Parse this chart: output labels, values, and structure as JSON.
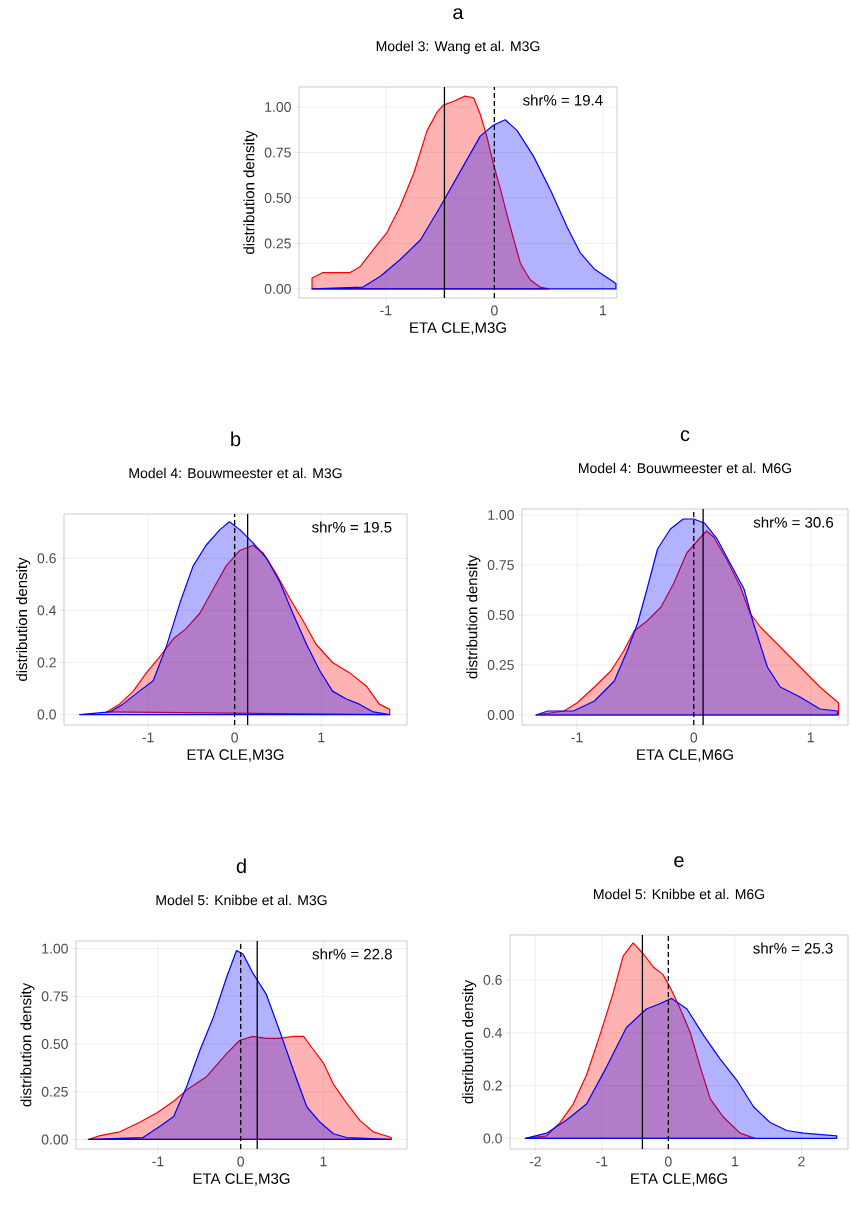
{
  "chart_data": [
    {
      "type": "area",
      "title": "a",
      "subtitle": "Model 3: Wang et al. M3G",
      "xlabel": "ETA CLE,M3G",
      "ylabel": "distribution density",
      "annotations": [
        "shr% = 19.4"
      ],
      "grid": true,
      "xlim": [
        -1.8,
        1.13
      ],
      "ylim": [
        -0.05,
        1.11
      ],
      "xticks": [
        -1,
        0,
        1
      ],
      "yticks": [
        {
          "value": 0,
          "label": "0.00"
        },
        {
          "value": 0.25,
          "label": "0.25"
        },
        {
          "value": 0.5,
          "label": "0.50"
        },
        {
          "value": 0.75,
          "label": "0.75"
        },
        {
          "value": 1,
          "label": "1.00"
        }
      ],
      "ref_lines": [
        {
          "axis": "x",
          "value": -0.46,
          "color": "#000000",
          "line_style": "solid"
        },
        {
          "axis": "x",
          "value": 0,
          "color": "#000000",
          "line_style": "dashed"
        }
      ],
      "series": [
        {
          "color": "#ff0000",
          "x": [
            -1.68,
            -1.68,
            -1.58,
            -1.45,
            -1.33,
            -1.24,
            -1.11,
            -0.99,
            -0.87,
            -0.74,
            -0.62,
            -0.53,
            -0.47,
            -0.38,
            -0.27,
            -0.19,
            -0.13,
            -0.07,
            -0.01,
            0.06,
            0.12,
            0.18,
            0.24,
            0.33,
            0.42,
            0.5
          ],
          "values": [
            0,
            0.06,
            0.09,
            0.09,
            0.09,
            0.12,
            0.22,
            0.31,
            0.45,
            0.64,
            0.87,
            0.97,
            1.01,
            1.03,
            1.06,
            1.05,
            0.96,
            0.84,
            0.69,
            0.54,
            0.4,
            0.27,
            0.14,
            0.05,
            0.01,
            0
          ]
        },
        {
          "color": "#0000ff",
          "x": [
            -1.68,
            -1.21,
            -1.05,
            -0.87,
            -0.68,
            -0.5,
            -0.31,
            -0.13,
            -0.01,
            0.1,
            0.21,
            0.36,
            0.52,
            0.67,
            0.79,
            0.92,
            1.07,
            1.12,
            1.12
          ],
          "values": [
            0,
            0.01,
            0.07,
            0.16,
            0.27,
            0.45,
            0.65,
            0.84,
            0.9,
            0.93,
            0.87,
            0.73,
            0.54,
            0.34,
            0.2,
            0.11,
            0.05,
            0.03,
            0
          ]
        }
      ]
    },
    {
      "type": "area",
      "title": "b",
      "subtitle": "Model 4: Bouwmeester et al. M3G",
      "xlabel": "ETA CLE,M3G",
      "ylabel": "distribution density",
      "annotations": [
        "shr% = 19.5"
      ],
      "grid": true,
      "xlim": [
        -1.97,
        1.99
      ],
      "ylim": [
        -0.04,
        0.77
      ],
      "xticks": [
        -1,
        0,
        1
      ],
      "yticks": [
        {
          "value": 0,
          "label": "0.0"
        },
        {
          "value": 0.2,
          "label": "0.2"
        },
        {
          "value": 0.4,
          "label": "0.4"
        },
        {
          "value": 0.6,
          "label": "0.6"
        }
      ],
      "ref_lines": [
        {
          "axis": "x",
          "value": 0,
          "color": "#000000",
          "line_style": "dashed"
        },
        {
          "axis": "x",
          "value": 0.15,
          "color": "#000000",
          "line_style": "solid"
        }
      ],
      "series": [
        {
          "color": "#ff0000",
          "x": [
            -1.48,
            -1.33,
            -1.17,
            -1.02,
            -0.87,
            -0.71,
            -0.56,
            -0.4,
            -0.25,
            -0.1,
            0.06,
            0.21,
            0.33,
            0.48,
            0.63,
            0.79,
            0.94,
            1.13,
            1.33,
            1.52,
            1.67,
            1.79,
            1.79
          ],
          "values": [
            0.01,
            0.04,
            0.09,
            0.16,
            0.22,
            0.29,
            0.33,
            0.39,
            0.48,
            0.57,
            0.63,
            0.65,
            0.62,
            0.54,
            0.45,
            0.36,
            0.27,
            0.2,
            0.16,
            0.11,
            0.04,
            0.02,
            0
          ]
        },
        {
          "color": "#0000ff",
          "x": [
            -1.79,
            -1.44,
            -1.29,
            -1.1,
            -0.94,
            -0.79,
            -0.63,
            -0.48,
            -0.33,
            -0.17,
            -0.06,
            0.06,
            0.21,
            0.37,
            0.52,
            0.67,
            0.83,
            0.98,
            1.13,
            1.29,
            1.44,
            1.6,
            1.79
          ],
          "values": [
            0,
            0.01,
            0.04,
            0.09,
            0.13,
            0.26,
            0.43,
            0.57,
            0.65,
            0.71,
            0.74,
            0.71,
            0.66,
            0.6,
            0.51,
            0.39,
            0.27,
            0.17,
            0.09,
            0.06,
            0.04,
            0.01,
            0
          ]
        }
      ]
    },
    {
      "type": "area",
      "title": "c",
      "subtitle": "Model 4: Bouwmeester et al. M6G",
      "xlabel": "ETA CLE,M6G",
      "ylabel": "distribution density",
      "annotations": [
        "shr% = 30.6"
      ],
      "grid": true,
      "xlim": [
        -1.47,
        1.32
      ],
      "ylim": [
        -0.05,
        1.03
      ],
      "xticks": [
        -1,
        0,
        1
      ],
      "yticks": [
        {
          "value": 0,
          "label": "0.00"
        },
        {
          "value": 0.25,
          "label": "0.25"
        },
        {
          "value": 0.5,
          "label": "0.50"
        },
        {
          "value": 0.75,
          "label": "0.75"
        },
        {
          "value": 1,
          "label": "1.00"
        }
      ],
      "ref_lines": [
        {
          "axis": "x",
          "value": 0,
          "color": "#000000",
          "line_style": "dashed"
        },
        {
          "axis": "x",
          "value": 0.08,
          "color": "#000000",
          "line_style": "solid"
        }
      ],
      "series": [
        {
          "color": "#ff0000",
          "x": [
            -1.35,
            -1.11,
            -1.0,
            -0.85,
            -0.71,
            -0.6,
            -0.51,
            -0.4,
            -0.28,
            -0.17,
            -0.06,
            0.06,
            0.11,
            0.17,
            0.28,
            0.4,
            0.48,
            0.57,
            0.74,
            0.91,
            1.08,
            1.24,
            1.24
          ],
          "values": [
            0,
            0.02,
            0.06,
            0.14,
            0.22,
            0.32,
            0.42,
            0.47,
            0.54,
            0.66,
            0.81,
            0.89,
            0.92,
            0.89,
            0.78,
            0.64,
            0.51,
            0.44,
            0.34,
            0.24,
            0.14,
            0.06,
            0
          ]
        },
        {
          "color": "#0000ff",
          "x": [
            -1.35,
            -1.25,
            -1.03,
            -0.85,
            -0.68,
            -0.57,
            -0.48,
            -0.4,
            -0.31,
            -0.2,
            -0.09,
            0,
            0.09,
            0.2,
            0.31,
            0.43,
            0.51,
            0.63,
            0.74,
            0.91,
            1.08,
            1.23,
            1.23
          ],
          "values": [
            0,
            0.02,
            0.02,
            0.07,
            0.17,
            0.32,
            0.46,
            0.63,
            0.83,
            0.93,
            0.98,
            0.98,
            0.96,
            0.88,
            0.76,
            0.63,
            0.46,
            0.24,
            0.14,
            0.09,
            0.03,
            0.02,
            0
          ]
        }
      ]
    },
    {
      "type": "area",
      "title": "d",
      "subtitle": "Model 5: Knibbe et al. M3G",
      "xlabel": "ETA CLE,M3G",
      "ylabel": "distribution density",
      "annotations": [
        "shr% = 22.8"
      ],
      "grid": true,
      "xlim": [
        -1.99,
        2.01
      ],
      "ylim": [
        -0.05,
        1.04
      ],
      "xticks": [
        -1,
        0,
        1
      ],
      "yticks": [
        {
          "value": 0,
          "label": "0.00"
        },
        {
          "value": 0.25,
          "label": "0.25"
        },
        {
          "value": 0.5,
          "label": "0.50"
        },
        {
          "value": 0.75,
          "label": "0.75"
        },
        {
          "value": 1,
          "label": "1.00"
        }
      ],
      "ref_lines": [
        {
          "axis": "x",
          "value": 0,
          "color": "#000000",
          "line_style": "dashed"
        },
        {
          "axis": "x",
          "value": 0.2,
          "color": "#000000",
          "line_style": "solid"
        }
      ],
      "series": [
        {
          "color": "#ff0000",
          "x": [
            -1.84,
            -1.7,
            -1.46,
            -1.22,
            -1.01,
            -0.81,
            -0.65,
            -0.41,
            -0.17,
            -0.01,
            0.15,
            0.31,
            0.47,
            0.64,
            0.76,
            0.88,
            1.0,
            1.12,
            1.28,
            1.44,
            1.6,
            1.82,
            1.82
          ],
          "values": [
            0,
            0.02,
            0.04,
            0.09,
            0.14,
            0.2,
            0.26,
            0.33,
            0.45,
            0.52,
            0.54,
            0.53,
            0.53,
            0.54,
            0.54,
            0.47,
            0.4,
            0.29,
            0.19,
            0.1,
            0.04,
            0.01,
            0
          ]
        },
        {
          "color": "#0000ff",
          "x": [
            -1.84,
            -1.18,
            -0.97,
            -0.81,
            -0.65,
            -0.49,
            -0.33,
            -0.17,
            -0.05,
            0.03,
            0.15,
            0.31,
            0.47,
            0.64,
            0.8,
            0.96,
            1.12,
            1.28,
            1.82
          ],
          "values": [
            0,
            0.01,
            0.07,
            0.12,
            0.28,
            0.47,
            0.64,
            0.85,
            0.99,
            0.97,
            0.87,
            0.76,
            0.57,
            0.36,
            0.17,
            0.09,
            0.03,
            0.01,
            0
          ]
        }
      ]
    },
    {
      "type": "area",
      "title": "e",
      "subtitle": "Model 5: Knibbe et al. M6G",
      "xlabel": "ETA CLE,M6G",
      "ylabel": "distribution density",
      "annotations": [
        "shr% = 25.3"
      ],
      "grid": true,
      "xlim": [
        -2.38,
        2.7
      ],
      "ylim": [
        -0.04,
        0.77
      ],
      "xticks": [
        -2,
        -1,
        0,
        1,
        2
      ],
      "yticks": [
        {
          "value": 0,
          "label": "0.0"
        },
        {
          "value": 0.2,
          "label": "0.2"
        },
        {
          "value": 0.4,
          "label": "0.4"
        },
        {
          "value": 0.6,
          "label": "0.6"
        }
      ],
      "ref_lines": [
        {
          "axis": "x",
          "value": -0.39,
          "color": "#000000",
          "line_style": "solid"
        },
        {
          "axis": "x",
          "value": 0,
          "color": "#000000",
          "line_style": "dashed"
        }
      ],
      "series": [
        {
          "color": "#ff0000",
          "x": [
            -2.15,
            -1.83,
            -1.63,
            -1.43,
            -1.23,
            -1.03,
            -0.83,
            -0.68,
            -0.53,
            -0.38,
            -0.23,
            -0.08,
            0.03,
            0.18,
            0.33,
            0.48,
            0.63,
            0.83,
            1.08,
            1.3
          ],
          "values": [
            0,
            0.01,
            0.06,
            0.13,
            0.24,
            0.39,
            0.55,
            0.69,
            0.74,
            0.7,
            0.65,
            0.62,
            0.57,
            0.49,
            0.4,
            0.27,
            0.15,
            0.08,
            0.02,
            0
          ]
        },
        {
          "color": "#0000ff",
          "x": [
            -2.15,
            -1.83,
            -1.53,
            -1.23,
            -0.93,
            -0.63,
            -0.33,
            -0.13,
            0.05,
            0.28,
            0.53,
            0.78,
            1.03,
            1.28,
            1.53,
            1.78,
            2.03,
            2.53,
            2.53
          ],
          "values": [
            0,
            0.02,
            0.07,
            0.13,
            0.27,
            0.42,
            0.49,
            0.51,
            0.53,
            0.49,
            0.39,
            0.3,
            0.22,
            0.12,
            0.06,
            0.03,
            0.02,
            0.01,
            0
          ]
        }
      ]
    }
  ]
}
